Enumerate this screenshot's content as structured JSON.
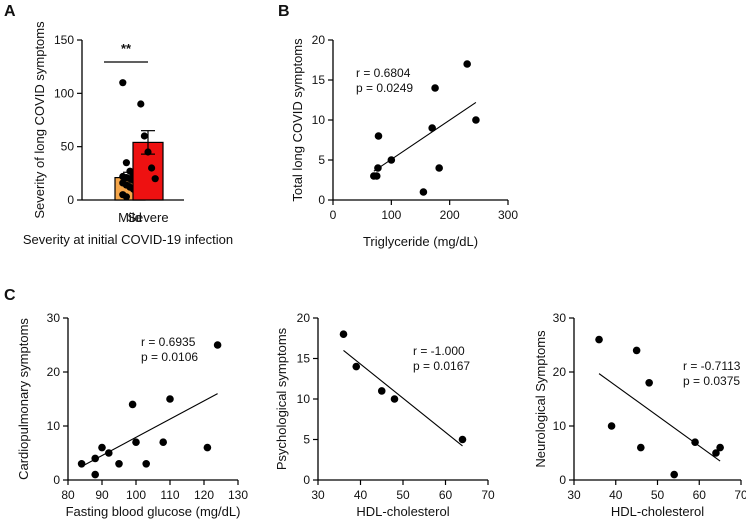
{
  "panel_labels": {
    "a": "A",
    "b": "B",
    "c": "C"
  },
  "colors": {
    "mild_bar": "#f5a64a",
    "severe_bar": "#ee1111",
    "point": "#000000",
    "axis": "#000000"
  },
  "chart_data": [
    {
      "id": "A",
      "type": "bar",
      "categories": [
        "Mild",
        "Severe"
      ],
      "values": [
        21,
        54
      ],
      "error": [
        5,
        11
      ],
      "points": [
        [
          110,
          35,
          27,
          25,
          24,
          22,
          21,
          20,
          19,
          18,
          16,
          14,
          12,
          10,
          7,
          5,
          3
        ],
        [
          90,
          60,
          45,
          30,
          20
        ]
      ],
      "significance": "**",
      "ylabel": "Severity of long COVID symptoms",
      "xlabel": "Severity at initial COVID-19 infection",
      "ylim": [
        0,
        150
      ],
      "yticks": [
        0,
        50,
        100,
        150
      ]
    },
    {
      "id": "B",
      "type": "scatter",
      "xlabel": "Triglyceride (mg/dL)",
      "ylabel": "Total long COVID symptoms",
      "xlim": [
        0,
        300
      ],
      "ylim": [
        0,
        20
      ],
      "xticks": [
        0,
        100,
        200,
        300
      ],
      "yticks": [
        0,
        5,
        10,
        15,
        20
      ],
      "points": [
        [
          70,
          3
        ],
        [
          75,
          3
        ],
        [
          77,
          4
        ],
        [
          78,
          8
        ],
        [
          100,
          5
        ],
        [
          155,
          1
        ],
        [
          170,
          9
        ],
        [
          175,
          14
        ],
        [
          182,
          4
        ],
        [
          230,
          17
        ],
        [
          245,
          10
        ]
      ],
      "fit": [
        [
          70,
          3.6
        ],
        [
          245,
          12.2
        ]
      ],
      "stats": [
        "r = 0.6804",
        "p = 0.0249"
      ]
    },
    {
      "id": "C1",
      "type": "scatter",
      "xlabel": "Fasting blood glucose (mg/dL)",
      "ylabel": "Cardiopulmonary symptoms",
      "xlim": [
        80,
        130
      ],
      "ylim": [
        0,
        30
      ],
      "xticks": [
        80,
        90,
        100,
        110,
        120,
        130
      ],
      "yticks": [
        0,
        10,
        20,
        30
      ],
      "points": [
        [
          84,
          3
        ],
        [
          88,
          1
        ],
        [
          88,
          4
        ],
        [
          90,
          6
        ],
        [
          92,
          5
        ],
        [
          95,
          3
        ],
        [
          99,
          14
        ],
        [
          100,
          7
        ],
        [
          103,
          3
        ],
        [
          108,
          7
        ],
        [
          110,
          15
        ],
        [
          121,
          6
        ],
        [
          124,
          25
        ]
      ],
      "fit": [
        [
          84,
          2.5
        ],
        [
          124,
          16
        ]
      ],
      "stats": [
        "r = 0.6935",
        "p = 0.0106"
      ]
    },
    {
      "id": "C2",
      "type": "scatter",
      "xlabel": "HDL-cholesterol",
      "ylabel": "Psychological symptoms",
      "xlim": [
        30,
        70
      ],
      "ylim": [
        0,
        20
      ],
      "xticks": [
        30,
        40,
        50,
        60,
        70
      ],
      "yticks": [
        0,
        5,
        10,
        15,
        20
      ],
      "points": [
        [
          36,
          18
        ],
        [
          39,
          14
        ],
        [
          45,
          11
        ],
        [
          48,
          10
        ],
        [
          64,
          5
        ]
      ],
      "fit": [
        [
          36,
          16
        ],
        [
          64,
          4.2
        ]
      ],
      "stats": [
        "r = -1.000",
        "p = 0.0167"
      ]
    },
    {
      "id": "C3",
      "type": "scatter",
      "xlabel": "HDL-cholesterol",
      "ylabel": "Neurological Symptoms",
      "xlim": [
        30,
        70
      ],
      "ylim": [
        0,
        30
      ],
      "xticks": [
        30,
        40,
        50,
        60,
        70
      ],
      "yticks": [
        0,
        10,
        20,
        30
      ],
      "points": [
        [
          36,
          26
        ],
        [
          39,
          10
        ],
        [
          45,
          24
        ],
        [
          46,
          6
        ],
        [
          48,
          18
        ],
        [
          54,
          1
        ],
        [
          59,
          7
        ],
        [
          64,
          5
        ],
        [
          65,
          6
        ]
      ],
      "fit": [
        [
          36,
          19.7
        ],
        [
          65,
          3.5
        ]
      ],
      "stats": [
        "r = -0.7113",
        "p = 0.0375"
      ]
    }
  ]
}
